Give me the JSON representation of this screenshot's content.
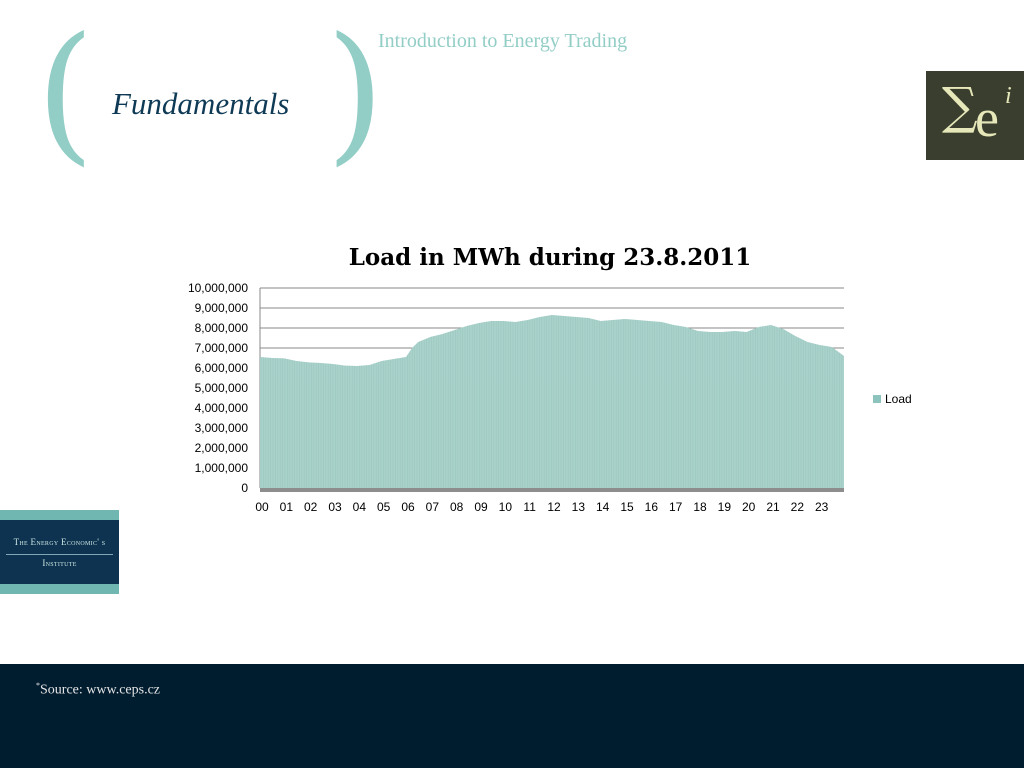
{
  "header": {
    "section_title": "Fundamentals",
    "course_title": "Introduction to Energy Trading",
    "paren_open": "(",
    "paren_close": ")"
  },
  "logo": {
    "sigma": "∑",
    "e": "e",
    "superscript": "i"
  },
  "institute": {
    "line1": "The Energy Economic' s",
    "line2": "Institute"
  },
  "footer": {
    "source_marker": "*",
    "source_text": "Source: www.ceps.cz"
  },
  "colors": {
    "accent": "#92cdc6",
    "fill": "#a9d2cb",
    "footer_bg": "#001c2f",
    "title_blue": "#0f3a55"
  },
  "chart_data": {
    "type": "area",
    "title": "Load in MWh during 23.8.2011",
    "xlabel": "",
    "ylabel": "",
    "ylim": [
      0,
      10000000
    ],
    "y_ticks": [
      0,
      1000000,
      2000000,
      3000000,
      4000000,
      5000000,
      6000000,
      7000000,
      8000000,
      9000000,
      10000000
    ],
    "y_tick_labels": [
      "0",
      "1,000,000",
      "2,000,000",
      "3,000,000",
      "4,000,000",
      "5,000,000",
      "6,000,000",
      "7,000,000",
      "8,000,000",
      "9,000,000",
      "10,000,000"
    ],
    "categories": [
      "00",
      "01",
      "02",
      "03",
      "04",
      "05",
      "06",
      "07",
      "08",
      "09",
      "10",
      "11",
      "12",
      "13",
      "14",
      "15",
      "16",
      "17",
      "18",
      "19",
      "20",
      "21",
      "22",
      "23"
    ],
    "grid": true,
    "legend_position": "right",
    "series": [
      {
        "name": "Load",
        "x": [
          0.0,
          0.5,
          1.0,
          1.5,
          2.0,
          2.5,
          3.0,
          3.5,
          4.0,
          4.5,
          5.0,
          5.5,
          6.0,
          6.25,
          6.5,
          7.0,
          7.5,
          8.0,
          8.5,
          9.0,
          9.5,
          10.0,
          10.5,
          11.0,
          11.5,
          12.0,
          12.5,
          13.0,
          13.5,
          14.0,
          14.5,
          15.0,
          15.5,
          16.0,
          16.5,
          17.0,
          17.5,
          18.0,
          18.5,
          19.0,
          19.5,
          20.0,
          20.5,
          21.0,
          21.5,
          22.0,
          22.5,
          23.0,
          23.5,
          24.0
        ],
        "values": [
          6550000,
          6500000,
          6480000,
          6350000,
          6280000,
          6250000,
          6200000,
          6120000,
          6100000,
          6150000,
          6350000,
          6450000,
          6550000,
          7000000,
          7300000,
          7550000,
          7700000,
          7900000,
          8100000,
          8250000,
          8350000,
          8350000,
          8300000,
          8400000,
          8550000,
          8650000,
          8600000,
          8550000,
          8500000,
          8350000,
          8400000,
          8450000,
          8400000,
          8350000,
          8300000,
          8150000,
          8050000,
          7850000,
          7800000,
          7800000,
          7850000,
          7800000,
          8050000,
          8150000,
          7950000,
          7600000,
          7300000,
          7150000,
          7050000,
          6600000
        ],
        "color": "#a9d2cb"
      }
    ]
  }
}
